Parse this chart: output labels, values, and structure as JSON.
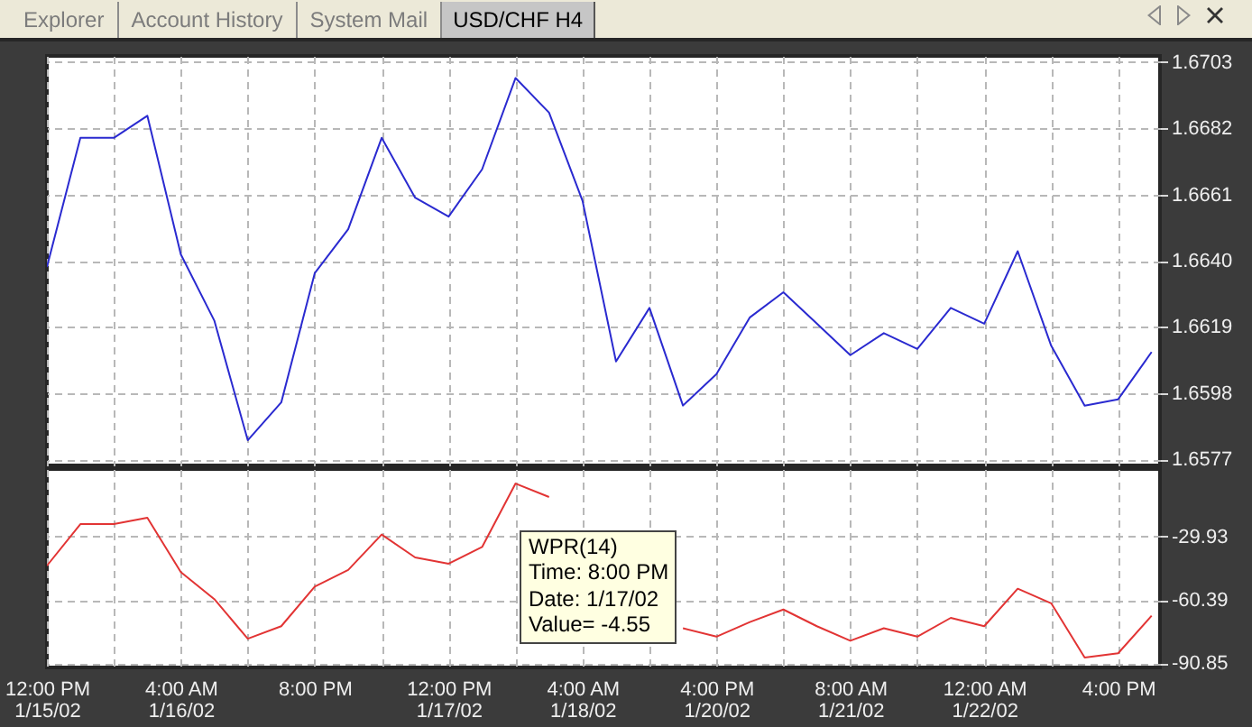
{
  "chart_data": [
    {
      "type": "line",
      "title": "USD/CHF H4",
      "annotations": [
        "Explorer",
        "Account History",
        "System Mail"
      ],
      "categories": [
        null,
        null,
        null,
        null,
        null,
        null,
        null,
        null,
        null,
        null,
        null,
        null,
        null,
        null,
        null,
        null,
        null,
        null,
        null,
        null,
        null,
        null,
        null,
        null,
        null,
        null,
        null,
        null,
        null,
        null,
        null,
        null,
        null,
        null
      ],
      "series": [
        {
          "color": "#2a2ad0",
          "values": [
            1.6638,
            1.6679,
            1.6679,
            1.6686,
            1.6642,
            1.6621,
            1.6583,
            1.6595,
            1.6636,
            1.665,
            1.6679,
            1.666,
            1.6654,
            1.6669,
            1.6698,
            1.6687,
            1.6659,
            1.6608,
            1.6625,
            1.6594,
            1.6604,
            1.6622,
            1.663,
            1.662,
            1.661,
            1.6617,
            1.6612,
            1.6625,
            1.662,
            1.6643,
            1.6613,
            1.6594,
            1.6596,
            1.6611
          ]
        }
      ],
      "ylim": [
        1.6575,
        1.6705
      ],
      "yticks": [
        1.6577,
        1.6598,
        1.6619,
        {
          "value": 1.664,
          "label": "1.6640"
        },
        1.6661,
        1.6682,
        1.6703
      ],
      "grid": true,
      "tick_labels": "y"
    },
    {
      "type": "line",
      "annotations": [
        "WPR(14)\nTime: 8:00 PM\nDate: 1/17/02\nValue= -4.55"
      ],
      "categories": [
        "12:00 PM\n1/15/02",
        null,
        null,
        null,
        "4:00 AM\n1/16/02",
        null,
        null,
        null,
        "8:00 PM",
        null,
        null,
        null,
        "12:00 PM\n1/17/02",
        null,
        null,
        null,
        "4:00 AM\n1/18/02",
        null,
        null,
        null,
        "4:00 PM\n1/20/02",
        null,
        null,
        null,
        "8:00 AM\n1/21/02",
        null,
        null,
        null,
        "12:00 AM\n1/22/02",
        null,
        null,
        null,
        "4:00 PM",
        null
      ],
      "series": [
        {
          "color": "#e23434",
          "values": [
            -44,
            -24,
            -24,
            -21,
            -47,
            -60,
            -79,
            -73,
            -54,
            -46,
            -29,
            -40,
            -43,
            -35,
            -4.55,
            -11,
            null,
            null,
            null,
            -74,
            -78,
            -71,
            -65,
            -73,
            -80,
            -74,
            -78,
            -69,
            -73,
            -55,
            -62,
            -88,
            -86,
            -68
          ]
        }
      ],
      "ylim": [
        -92.8,
        2.4
      ],
      "yticks": [
        -29.93,
        -60.39,
        -90.85
      ],
      "grid": true
    }
  ]
}
